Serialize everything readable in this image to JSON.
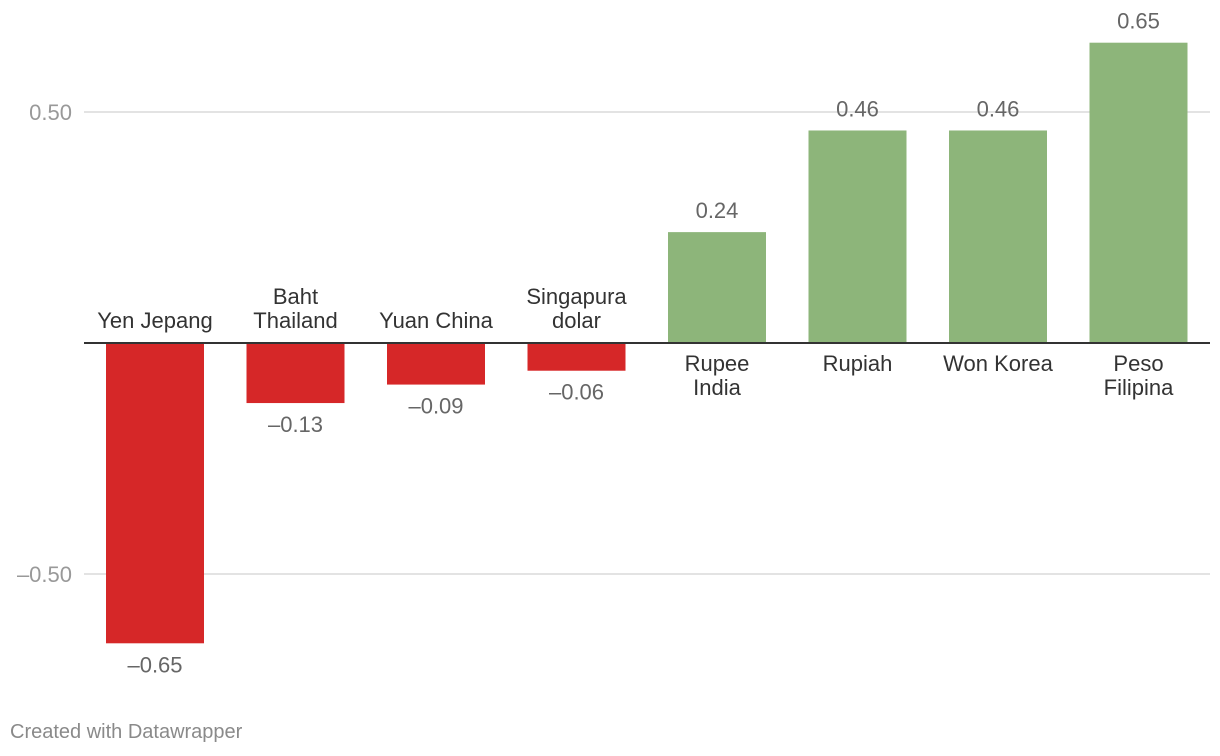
{
  "chart_data": {
    "type": "bar",
    "categories": [
      [
        "Yen Jepang"
      ],
      [
        "Baht",
        "Thailand"
      ],
      [
        "Yuan China"
      ],
      [
        "Singapura",
        "dolar"
      ],
      [
        "Rupee",
        "India"
      ],
      [
        "Rupiah"
      ],
      [
        "Won Korea"
      ],
      [
        "Peso",
        "Filipina"
      ]
    ],
    "values": [
      -0.65,
      -0.13,
      -0.09,
      -0.06,
      0.24,
      0.46,
      0.46,
      0.65
    ],
    "value_labels": [
      "–0.65",
      "–0.13",
      "–0.09",
      "–0.06",
      "0.24",
      "0.46",
      "0.46",
      "0.65"
    ],
    "yticks": [
      0.5,
      -0.5
    ],
    "ytick_labels": [
      "0.50",
      "–0.50"
    ],
    "colors": {
      "positive": "#8db57a",
      "negative": "#d62728",
      "gridline": "#e3e3e3",
      "baseline": "#333333"
    },
    "grid": true,
    "legend": "none"
  },
  "footer": {
    "credit": "Created with Datawrapper"
  }
}
